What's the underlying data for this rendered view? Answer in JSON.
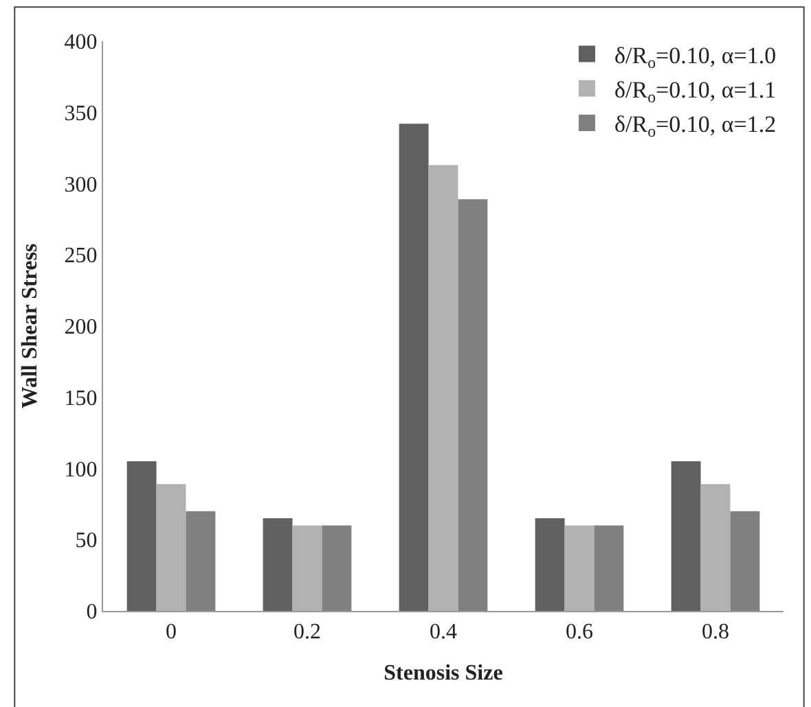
{
  "chart_data": {
    "type": "bar",
    "xlabel": "Stenosis Size",
    "ylabel": "Wall Shear Stress",
    "categories": [
      "0",
      "0.2",
      "0.4",
      "0.6",
      "0.8"
    ],
    "series": [
      {
        "name": "δ/R$_{o}$=0.10, α=1.0",
        "color": "#606060",
        "values": [
          105,
          65,
          342,
          65,
          105
        ]
      },
      {
        "name": "δ/R$_{o}$=0.10, α=1.1",
        "color": "#b2b2b2",
        "values": [
          89,
          60,
          313,
          60,
          89
        ]
      },
      {
        "name": "δ/R$_{o}$=0.10, α=1.2",
        "color": "#808080",
        "values": [
          70,
          60,
          289,
          60,
          70
        ]
      }
    ],
    "ylim": [
      0,
      400
    ],
    "yticks": [
      0,
      50,
      100,
      150,
      200,
      250,
      300,
      350,
      400
    ],
    "grid": false,
    "legend": "top right"
  }
}
